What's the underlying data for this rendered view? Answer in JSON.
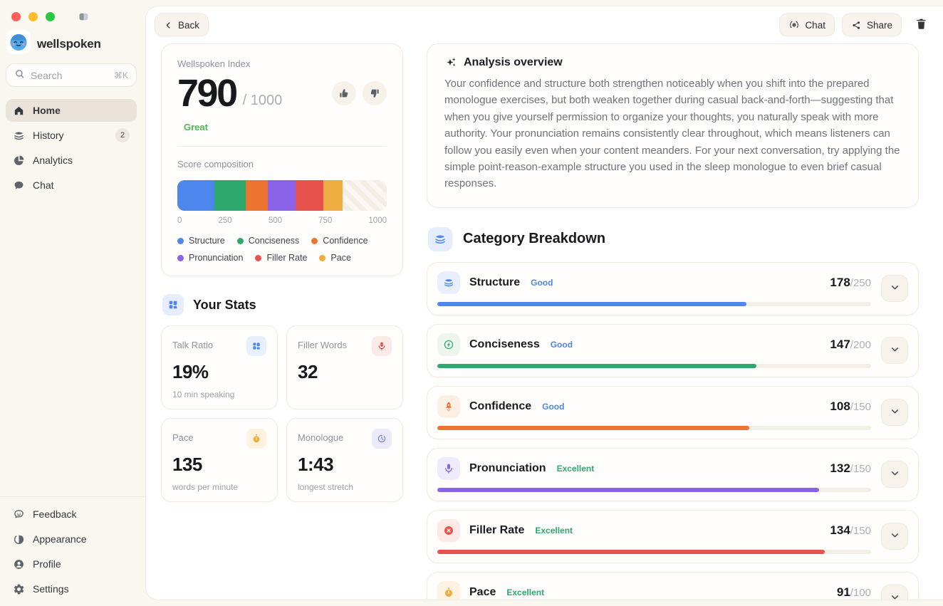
{
  "window": {
    "traffic_lights": [
      "#FF5F57",
      "#FEBC2E",
      "#28C840"
    ]
  },
  "sidebar": {
    "logo": "wellspoken",
    "search": {
      "placeholder": "Search",
      "shortcut": "⌘K"
    },
    "nav": [
      {
        "label": "Home",
        "icon": "home-icon",
        "active": true
      },
      {
        "label": "History",
        "icon": "history-icon",
        "badge": "2"
      },
      {
        "label": "Analytics",
        "icon": "analytics-icon"
      },
      {
        "label": "Chat",
        "icon": "chat-icon"
      }
    ],
    "footer": [
      {
        "label": "Feedback",
        "icon": "feedback-icon"
      },
      {
        "label": "Appearance",
        "icon": "appearance-icon"
      },
      {
        "label": "Profile",
        "icon": "profile-icon"
      },
      {
        "label": "Settings",
        "icon": "settings-icon"
      }
    ]
  },
  "topbar": {
    "back": "Back",
    "chat": "Chat",
    "share": "Share"
  },
  "index_card": {
    "title": "Wellspoken Index",
    "score": "790",
    "max": "/ 1000",
    "rating": "Great",
    "rating_color": "#53B457",
    "composition_title": "Score composition"
  },
  "chart_data": {
    "type": "stacked-bar",
    "title": "Score composition",
    "max": 1000,
    "total": 790,
    "x_ticks": [
      "0",
      "250",
      "500",
      "750",
      "1000"
    ],
    "segments": [
      {
        "label": "Structure",
        "value": 178,
        "color": "#4D86EC"
      },
      {
        "label": "Conciseness",
        "value": 147,
        "color": "#2EA96E"
      },
      {
        "label": "Confidence",
        "value": 108,
        "color": "#ED7430"
      },
      {
        "label": "Pronunciation",
        "value": 132,
        "color": "#8A63E8"
      },
      {
        "label": "Filler Rate",
        "value": 134,
        "color": "#E8524C"
      },
      {
        "label": "Pace",
        "value": 91,
        "color": "#EFAC41"
      }
    ]
  },
  "stats": {
    "title": "Your Stats",
    "cards": [
      {
        "label": "Talk Ratio",
        "value": "19%",
        "sub": "10 min speaking",
        "icon": "grid-icon"
      },
      {
        "label": "Filler Words",
        "value": "32",
        "sub": "",
        "icon": "mic-icon"
      },
      {
        "label": "Pace",
        "value": "135",
        "sub": "words per minute",
        "icon": "stopwatch-icon"
      },
      {
        "label": "Monologue",
        "value": "1:43",
        "sub": "longest stretch",
        "icon": "timer-icon"
      }
    ]
  },
  "analysis": {
    "title": "Analysis overview",
    "body": "Your confidence and structure both strengthen noticeably when you shift into the prepared monologue exercises, but both weaken together during casual back-and-forth—suggesting that when you give yourself permission to organize your thoughts, you naturally speak with more authority. Your pronunciation remains consistently clear throughout, which means listeners can follow you easily even when your content meanders. For your next conversation, try applying the simple point-reason-example structure you used in the sleep monologue to even brief casual responses."
  },
  "breakdown": {
    "title": "Category Breakdown",
    "categories": [
      {
        "name": "Structure",
        "status": "Good",
        "status_color": "#4D86EC",
        "score": 178,
        "max": 250,
        "score_display": "178",
        "max_display": "/250",
        "color": "#4D86EC",
        "icon": "layers-icon"
      },
      {
        "name": "Conciseness",
        "status": "Good",
        "status_color": "#4D86EC",
        "score": 147,
        "max": 200,
        "score_display": "147",
        "max_display": "/200",
        "color": "#2EA96E",
        "icon": "bolt-icon"
      },
      {
        "name": "Confidence",
        "status": "Good",
        "status_color": "#4D86EC",
        "score": 108,
        "max": 150,
        "score_display": "108",
        "max_display": "/150",
        "color": "#ED7430",
        "icon": "rocket-icon"
      },
      {
        "name": "Pronunciation",
        "status": "Excellent",
        "status_color": "#2EA96E",
        "score": 132,
        "max": 150,
        "score_display": "132",
        "max_display": "/150",
        "color": "#8A63E8",
        "icon": "mic-icon"
      },
      {
        "name": "Filler Rate",
        "status": "Excellent",
        "status_color": "#2EA96E",
        "score": 134,
        "max": 150,
        "score_display": "134",
        "max_display": "/150",
        "color": "#E8524C",
        "icon": "x-circle-icon"
      },
      {
        "name": "Pace",
        "status": "Excellent",
        "status_color": "#2EA96E",
        "score": 91,
        "max": 100,
        "score_display": "91",
        "max_display": "/100",
        "color": "#EFAC41",
        "icon": "stopwatch-icon"
      }
    ]
  }
}
